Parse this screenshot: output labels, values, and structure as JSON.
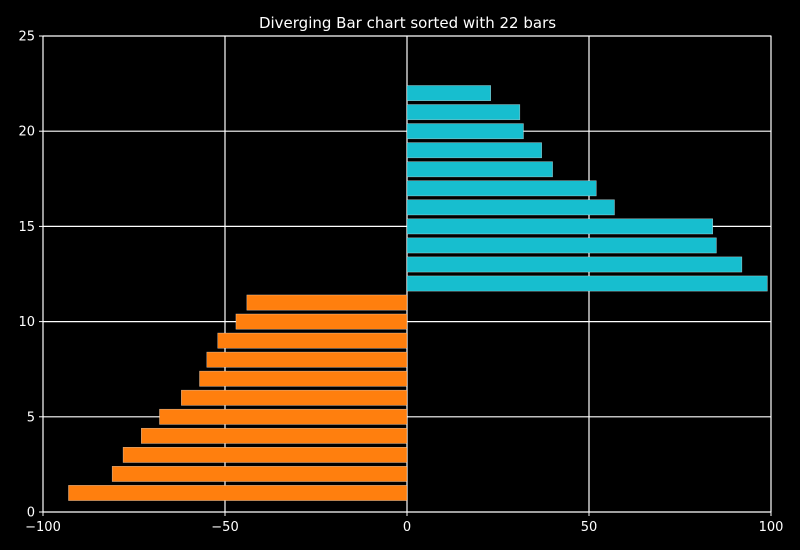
{
  "chart_data": {
    "type": "bar",
    "orientation": "horizontal",
    "title": "Diverging Bar chart sorted with 22 bars",
    "xlabel": "",
    "ylabel": "",
    "xlim": [
      -100,
      100
    ],
    "ylim": [
      0,
      25
    ],
    "x_ticks": [
      -100,
      -50,
      0,
      50,
      100
    ],
    "x_tick_labels": [
      "−100",
      "−50",
      "0",
      "50",
      "100"
    ],
    "y_ticks": [
      0,
      5,
      10,
      15,
      20,
      25
    ],
    "y_tick_labels": [
      "0",
      "5",
      "10",
      "15",
      "20",
      "25"
    ],
    "grid": true,
    "legend": "none",
    "colors": {
      "background": "#000000",
      "grid": "#ffffff",
      "axis": "#ffffff",
      "text": "#ffffff",
      "negative": "#ff7f0e",
      "positive": "#17becf"
    },
    "bars": [
      {
        "y": 1,
        "value": -93
      },
      {
        "y": 2,
        "value": -81
      },
      {
        "y": 3,
        "value": -78
      },
      {
        "y": 4,
        "value": -73
      },
      {
        "y": 5,
        "value": -68
      },
      {
        "y": 6,
        "value": -62
      },
      {
        "y": 7,
        "value": -57
      },
      {
        "y": 8,
        "value": -55
      },
      {
        "y": 9,
        "value": -52
      },
      {
        "y": 10,
        "value": -47
      },
      {
        "y": 11,
        "value": -44
      },
      {
        "y": 12,
        "value": 99
      },
      {
        "y": 13,
        "value": 92
      },
      {
        "y": 14,
        "value": 85
      },
      {
        "y": 15,
        "value": 84
      },
      {
        "y": 16,
        "value": 57
      },
      {
        "y": 17,
        "value": 52
      },
      {
        "y": 18,
        "value": 40
      },
      {
        "y": 19,
        "value": 37
      },
      {
        "y": 20,
        "value": 32
      },
      {
        "y": 21,
        "value": 31
      },
      {
        "y": 22,
        "value": 23
      }
    ]
  }
}
